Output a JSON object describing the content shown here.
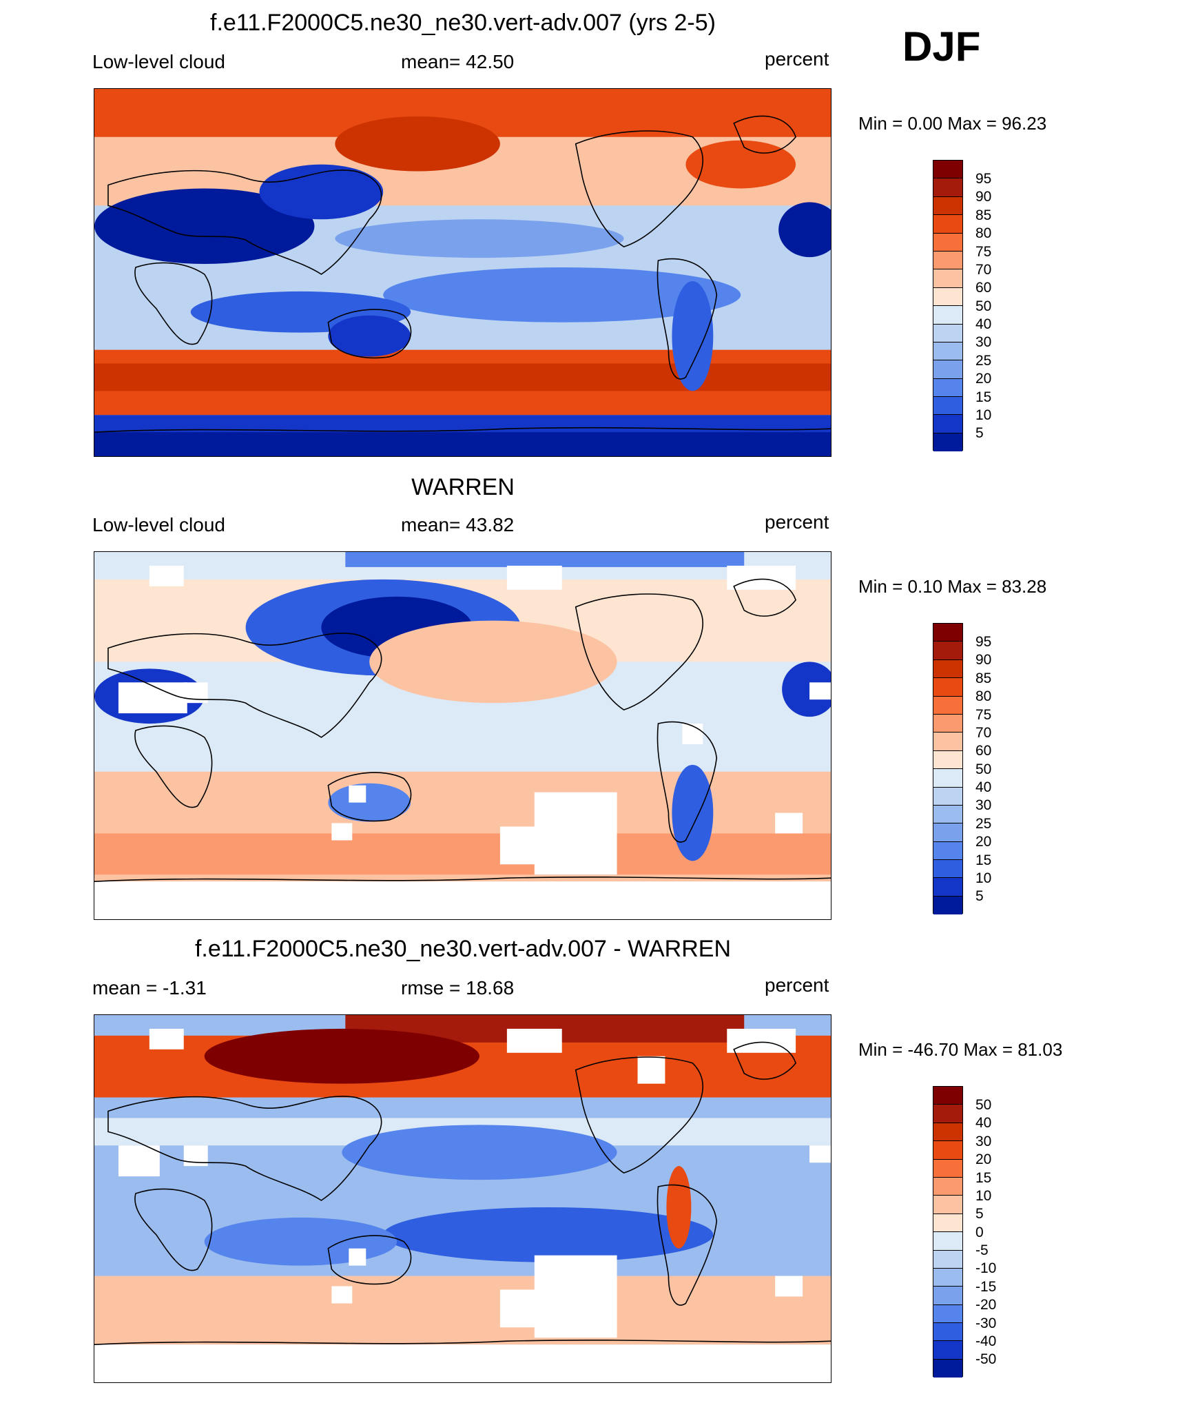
{
  "season": "DJF",
  "panels": [
    {
      "id": "model",
      "title": "f.e11.F2000C5.ne30_ne30.vert-adv.007 (yrs 2-5)",
      "left_label": "Low-level cloud",
      "center_label": "mean=  42.50",
      "right_label": "percent",
      "minmax": "Min =   0.00 Max =  96.23",
      "colorbar_labels": [
        "95",
        "90",
        "85",
        "80",
        "75",
        "70",
        "60",
        "50",
        "40",
        "30",
        "25",
        "20",
        "15",
        "10",
        "5"
      ]
    },
    {
      "id": "obs",
      "title": "WARREN",
      "left_label": "Low-level cloud",
      "center_label": "mean=  43.82",
      "right_label": "percent",
      "minmax": "Min =   0.10 Max =  83.28",
      "colorbar_labels": [
        "95",
        "90",
        "85",
        "80",
        "75",
        "70",
        "60",
        "50",
        "40",
        "30",
        "25",
        "20",
        "15",
        "10",
        "5"
      ]
    },
    {
      "id": "diff",
      "title": "f.e11.F2000C5.ne30_ne30.vert-adv.007 - WARREN",
      "left_label": "mean =  -1.31",
      "center_label": "rmse =  18.68",
      "right_label": "percent",
      "minmax": "Min = -46.70 Max =  81.03",
      "colorbar_labels": [
        "50",
        "40",
        "30",
        "20",
        "15",
        "10",
        "5",
        "0",
        "-5",
        "-10",
        "-15",
        "-20",
        "-30",
        "-40",
        "-50"
      ]
    }
  ],
  "colors": {
    "scale": [
      "#7f0000",
      "#a51b0b",
      "#cc3300",
      "#e84a12",
      "#f7703a",
      "#fb9a6e",
      "#fcc3a3",
      "#fde5d2",
      "#dce9f7",
      "#bcd3f2",
      "#9bbcee",
      "#7aa2ec",
      "#5584ec",
      "#2f5fe0",
      "#1436c8",
      "#001a9c",
      "#00007a"
    ],
    "land_outline": "#000000"
  }
}
